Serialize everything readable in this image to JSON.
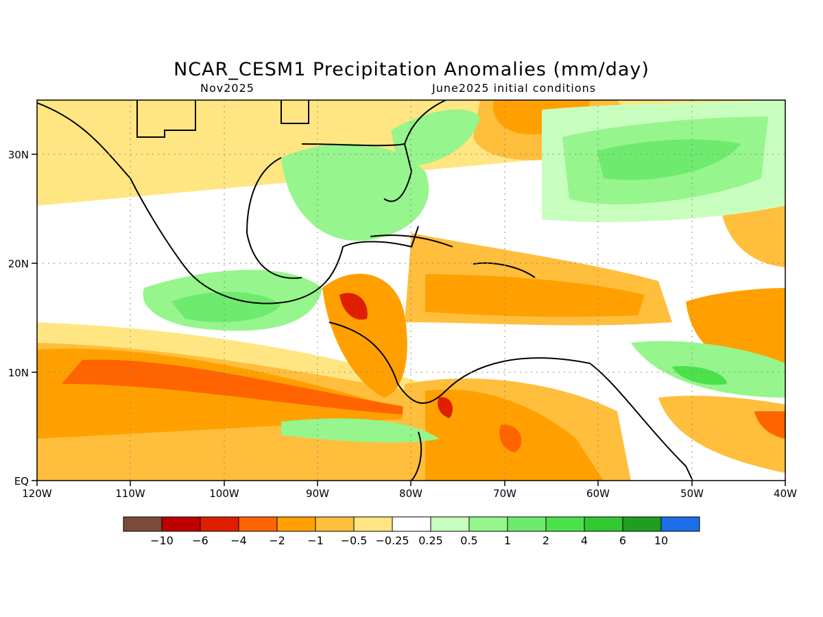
{
  "title": "NCAR_CESM1 Precipitation Anomalies (mm/day)",
  "subtitle_left": "Nov2025",
  "subtitle_right": "June2025 initial conditions",
  "map": {
    "x_ticks": [
      "120W",
      "110W",
      "100W",
      "90W",
      "80W",
      "70W",
      "60W",
      "50W",
      "40W"
    ],
    "y_ticks": [
      "EQ",
      "10N",
      "20N",
      "30N"
    ],
    "lon_range": [
      -120,
      -40
    ],
    "lat_range": [
      0,
      35
    ]
  },
  "colorbar": {
    "labels": [
      "-10",
      "-6",
      "-4",
      "-2",
      "-1",
      "-0.5",
      "-0.25",
      "0.25",
      "0.5",
      "1",
      "2",
      "4",
      "6",
      "10"
    ],
    "colors": [
      "#7a4a3a",
      "#c00000",
      "#e01e00",
      "#ff6400",
      "#ffa000",
      "#ffbe3c",
      "#ffe682",
      "#ffffff",
      "#c8ffbe",
      "#96f58c",
      "#6eeb6e",
      "#4be14b",
      "#32c832",
      "#1ea01e",
      "#1e6eeb"
    ]
  }
}
